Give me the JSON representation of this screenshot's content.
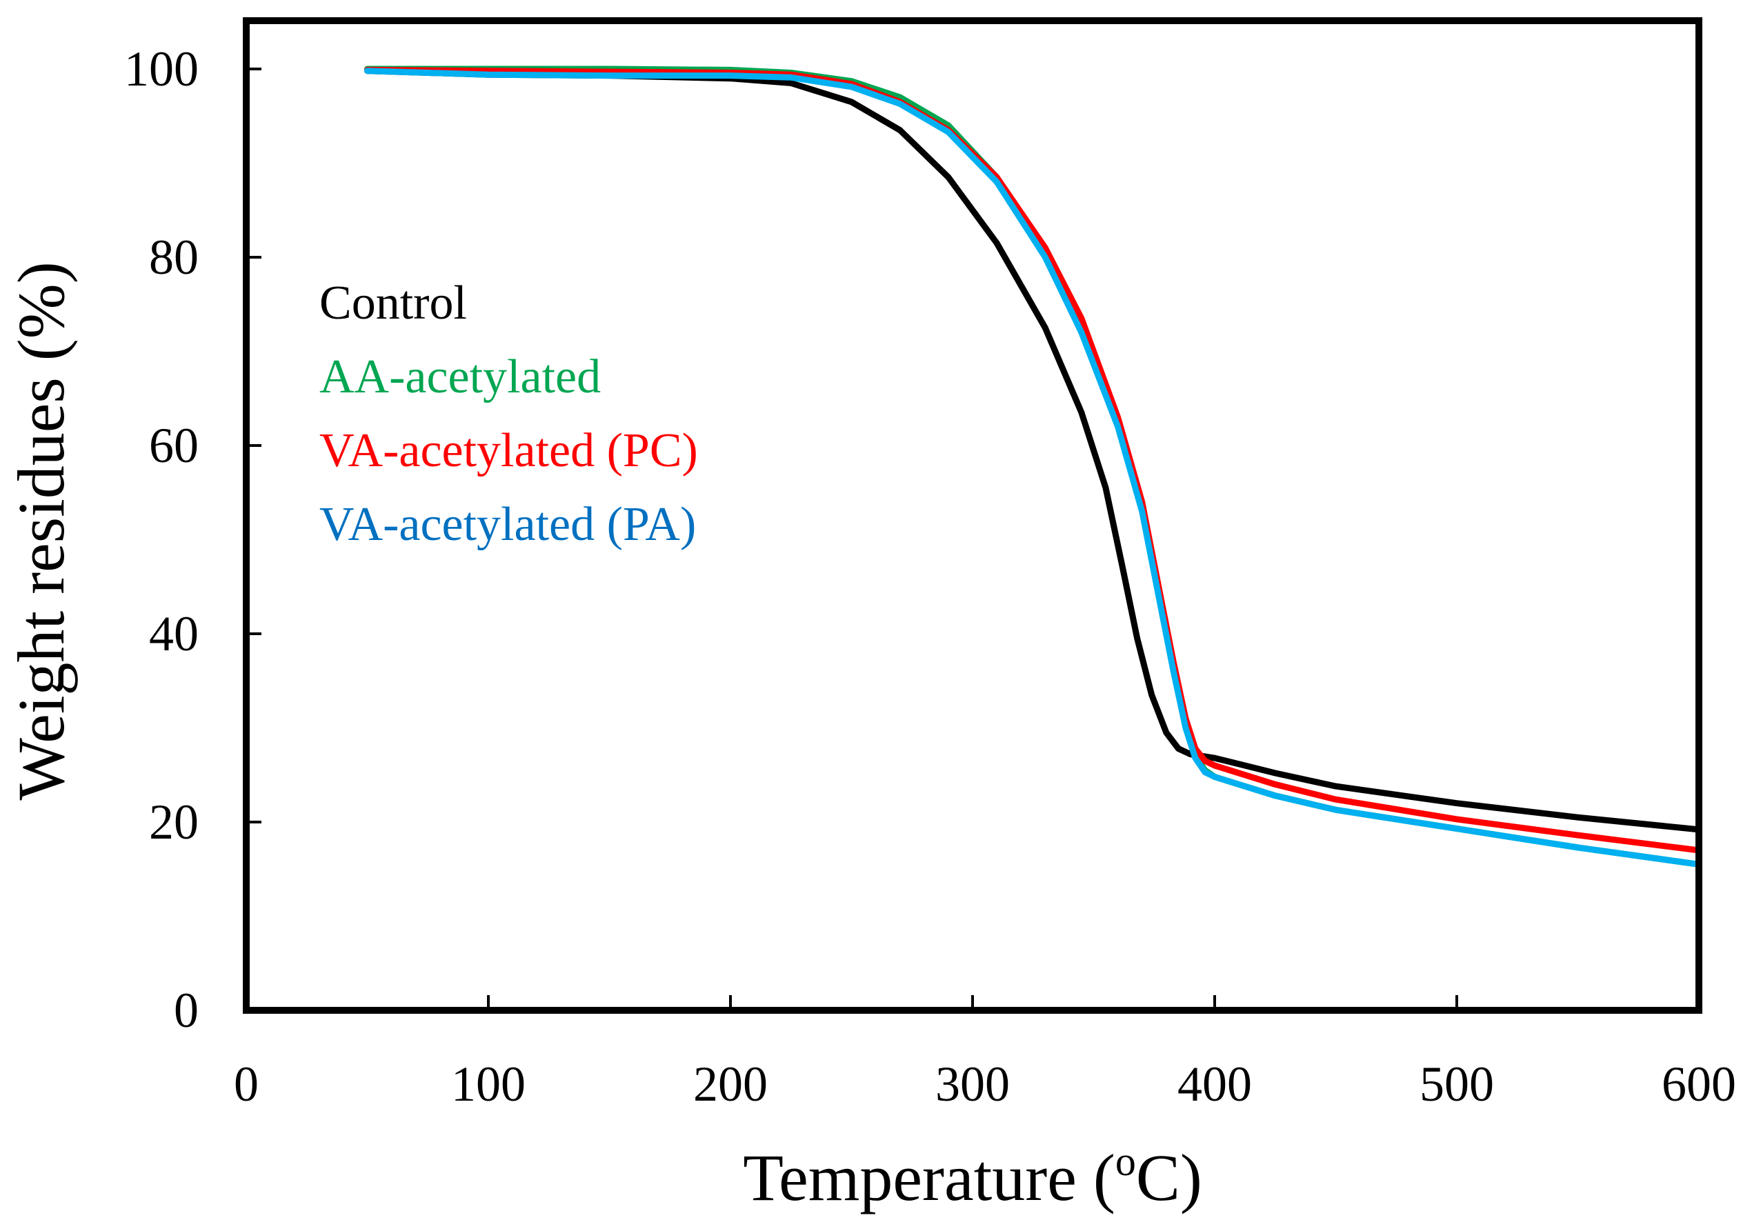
{
  "chart_data": {
    "type": "line",
    "title": "",
    "xlabel": "Temperature (",
    "xlabel_sup": "o",
    "xlabel_tail": "C)",
    "ylabel": "Weight residues (%)",
    "xlim": [
      0,
      600
    ],
    "ylim": [
      0,
      100
    ],
    "x_ticks": [
      0,
      100,
      200,
      300,
      400,
      500,
      600
    ],
    "y_ticks": [
      0,
      20,
      40,
      60,
      80,
      100
    ],
    "x_tick_labels": [
      "0",
      "100",
      "200",
      "300",
      "400",
      "500",
      "600"
    ],
    "y_tick_labels": [
      "0",
      "20",
      "40",
      "60",
      "80",
      "100"
    ],
    "grid": false,
    "legend_position": "upper-left",
    "series": [
      {
        "name": "Control",
        "color": "#000000",
        "points": [
          [
            50,
            99.8
          ],
          [
            100,
            99.4
          ],
          [
            150,
            99.3
          ],
          [
            200,
            99.0
          ],
          [
            225,
            98.5
          ],
          [
            250,
            96.5
          ],
          [
            270,
            93.5
          ],
          [
            290,
            88.5
          ],
          [
            310,
            81.5
          ],
          [
            330,
            72.5
          ],
          [
            345,
            63.5
          ],
          [
            355,
            55.5
          ],
          [
            362,
            47.0
          ],
          [
            368,
            39.5
          ],
          [
            374,
            33.5
          ],
          [
            380,
            29.5
          ],
          [
            385,
            27.8
          ],
          [
            390,
            27.2
          ],
          [
            400,
            26.8
          ],
          [
            425,
            25.2
          ],
          [
            450,
            23.8
          ],
          [
            500,
            22.0
          ],
          [
            550,
            20.5
          ],
          [
            600,
            19.2
          ]
        ]
      },
      {
        "name": "AA-acetylated",
        "color": "#00a651",
        "points": [
          [
            50,
            100.0
          ],
          [
            100,
            100.0
          ],
          [
            150,
            100.0
          ],
          [
            200,
            99.9
          ],
          [
            225,
            99.6
          ],
          [
            250,
            98.7
          ],
          [
            270,
            97.0
          ],
          [
            290,
            94.0
          ],
          [
            310,
            88.5
          ],
          [
            330,
            80.5
          ],
          [
            345,
            72.5
          ],
          [
            360,
            62.5
          ],
          [
            370,
            53.5
          ],
          [
            378,
            43.0
          ],
          [
            383,
            36.5
          ],
          [
            388,
            30.5
          ],
          [
            392,
            27.0
          ],
          [
            396,
            25.5
          ],
          [
            400,
            24.8
          ],
          [
            425,
            22.8
          ],
          [
            450,
            21.3
          ],
          [
            500,
            19.3
          ],
          [
            550,
            17.3
          ],
          [
            600,
            15.5
          ]
        ]
      },
      {
        "name": "VA-acetylated (PC)",
        "color": "#ff0000",
        "points": [
          [
            50,
            99.9
          ],
          [
            100,
            99.8
          ],
          [
            150,
            99.7
          ],
          [
            200,
            99.6
          ],
          [
            225,
            99.4
          ],
          [
            250,
            98.4
          ],
          [
            270,
            96.5
          ],
          [
            290,
            93.5
          ],
          [
            310,
            88.5
          ],
          [
            330,
            81.0
          ],
          [
            345,
            73.5
          ],
          [
            360,
            63.0
          ],
          [
            370,
            54.0
          ],
          [
            378,
            43.5
          ],
          [
            383,
            37.0
          ],
          [
            388,
            31.0
          ],
          [
            392,
            27.8
          ],
          [
            396,
            26.5
          ],
          [
            400,
            26.0
          ],
          [
            425,
            24.0
          ],
          [
            450,
            22.4
          ],
          [
            500,
            20.3
          ],
          [
            550,
            18.6
          ],
          [
            600,
            17.0
          ]
        ]
      },
      {
        "name": "VA-acetylated (PA)",
        "color": "#00b0f0",
        "legend_color": "#0070c0",
        "points": [
          [
            50,
            99.8
          ],
          [
            100,
            99.4
          ],
          [
            150,
            99.3
          ],
          [
            200,
            99.3
          ],
          [
            225,
            99.1
          ],
          [
            250,
            98.1
          ],
          [
            270,
            96.3
          ],
          [
            290,
            93.3
          ],
          [
            310,
            88.0
          ],
          [
            330,
            80.0
          ],
          [
            345,
            72.0
          ],
          [
            360,
            62.0
          ],
          [
            370,
            53.0
          ],
          [
            378,
            42.5
          ],
          [
            383,
            36.0
          ],
          [
            388,
            30.0
          ],
          [
            392,
            26.8
          ],
          [
            396,
            25.3
          ],
          [
            400,
            24.8
          ],
          [
            425,
            22.8
          ],
          [
            450,
            21.3
          ],
          [
            500,
            19.3
          ],
          [
            550,
            17.3
          ],
          [
            600,
            15.5
          ]
        ]
      }
    ]
  }
}
